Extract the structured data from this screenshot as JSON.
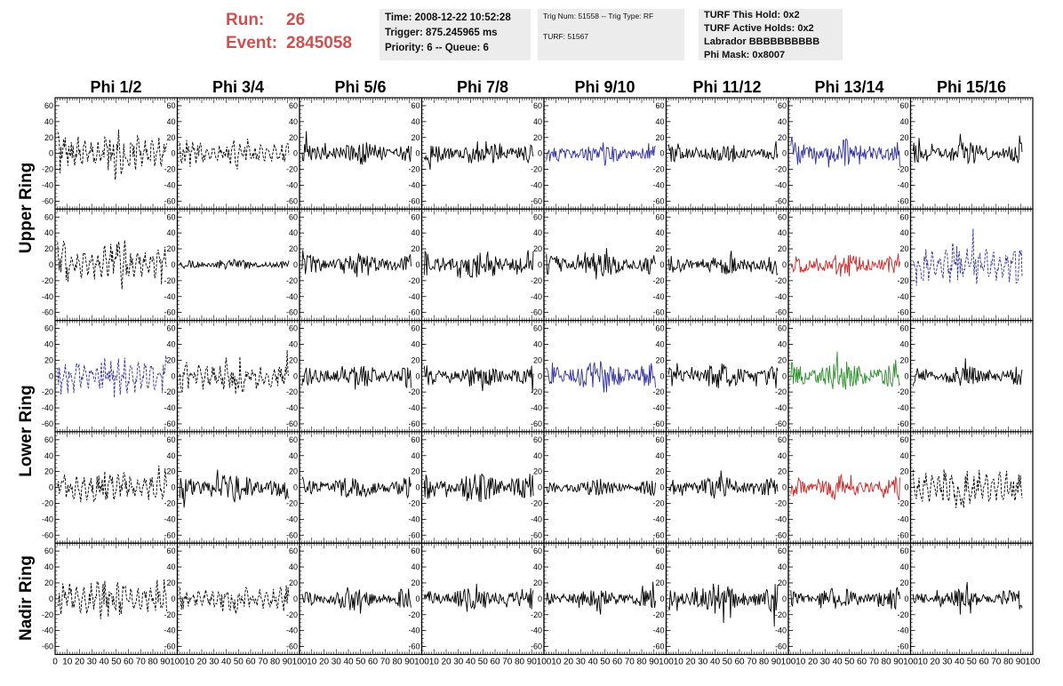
{
  "header": {
    "run_label": "Run:",
    "run_value": "26",
    "event_label": "Event:",
    "event_value": "2845058",
    "time": "Time: 2008-12-22 10:52:28",
    "trigger": "Trigger: 875.245965 ms",
    "priority": "Priority: 6 -- Queue: 6",
    "trig_num": "Trig Num: 51558 -- Trig Type: RF",
    "turf_num": "TURF: 51567",
    "turf_this_hold": "TURF This Hold: 0x2",
    "turf_active_holds": "TURF Active Holds: 0x2",
    "labrador": "Labrador BBBBBBBBBB",
    "phi_mask": "Phi Mask: 0x8007"
  },
  "chart_data": {
    "type": "line",
    "columns": [
      "Phi 1/2",
      "Phi 3/4",
      "Phi 5/6",
      "Phi 7/8",
      "Phi 9/10",
      "Phi 11/12",
      "Phi 13/14",
      "Phi 15/16"
    ],
    "ring_labels": [
      {
        "text": "Upper Ring",
        "rows": [
          0,
          1
        ]
      },
      {
        "text": "Lower Ring",
        "rows": [
          2,
          3
        ]
      },
      {
        "text": "Nadir Ring",
        "rows": [
          4,
          4
        ]
      }
    ],
    "ylim": [
      -70,
      70
    ],
    "y_ticks": [
      -60,
      -40,
      -20,
      0,
      20,
      40,
      60
    ],
    "xlim": [
      0,
      100
    ],
    "x_ticks": [
      0,
      10,
      20,
      30,
      40,
      50,
      60,
      70,
      80,
      90,
      100
    ],
    "colors": {
      "black": "#000000",
      "blue": "#2f2f9f",
      "red": "#c82828",
      "green": "#2a8f2a"
    },
    "panels": [
      [
        {
          "color": "black",
          "style": "dashed",
          "amp": 18
        },
        {
          "color": "black",
          "style": "dashed",
          "amp": 12
        },
        {
          "color": "black",
          "style": "solid",
          "amp": 15
        },
        {
          "color": "black",
          "style": "solid",
          "amp": 15
        },
        {
          "color": "blue",
          "style": "solid",
          "amp": 12
        },
        {
          "color": "black",
          "style": "solid",
          "amp": 11
        },
        {
          "color": "blue",
          "style": "solid",
          "amp": 17
        },
        {
          "color": "black",
          "style": "solid",
          "amp": 14
        }
      ],
      [
        {
          "color": "black",
          "style": "dashed",
          "amp": 20
        },
        {
          "color": "black",
          "style": "solid",
          "amp": 7
        },
        {
          "color": "black",
          "style": "solid",
          "amp": 15
        },
        {
          "color": "black",
          "style": "solid",
          "amp": 17
        },
        {
          "color": "black",
          "style": "solid",
          "amp": 14
        },
        {
          "color": "black",
          "style": "solid",
          "amp": 13
        },
        {
          "color": "red",
          "style": "solid",
          "amp": 14
        },
        {
          "color": "blue",
          "style": "dashed",
          "amp": 20
        }
      ],
      [
        {
          "color": "blue",
          "style": "dashed",
          "amp": 18
        },
        {
          "color": "black",
          "style": "dashed",
          "amp": 16
        },
        {
          "color": "black",
          "style": "solid",
          "amp": 16
        },
        {
          "color": "black",
          "style": "solid",
          "amp": 14
        },
        {
          "color": "blue",
          "style": "solid",
          "amp": 20
        },
        {
          "color": "black",
          "style": "solid",
          "amp": 15
        },
        {
          "color": "green",
          "style": "solid",
          "amp": 18
        },
        {
          "color": "black",
          "style": "solid",
          "amp": 12
        }
      ],
      [
        {
          "color": "black",
          "style": "dashed",
          "amp": 16
        },
        {
          "color": "black",
          "style": "solid",
          "amp": 17
        },
        {
          "color": "black",
          "style": "solid",
          "amp": 13
        },
        {
          "color": "black",
          "style": "solid",
          "amp": 18
        },
        {
          "color": "black",
          "style": "solid",
          "amp": 10
        },
        {
          "color": "black",
          "style": "solid",
          "amp": 13
        },
        {
          "color": "red",
          "style": "solid",
          "amp": 15
        },
        {
          "color": "black",
          "style": "dashed",
          "amp": 20
        }
      ],
      [
        {
          "color": "black",
          "style": "dashed",
          "amp": 18
        },
        {
          "color": "black",
          "style": "dashed",
          "amp": 12
        },
        {
          "color": "black",
          "style": "solid",
          "amp": 14
        },
        {
          "color": "black",
          "style": "solid",
          "amp": 14
        },
        {
          "color": "black",
          "style": "solid",
          "amp": 12
        },
        {
          "color": "black",
          "style": "solid",
          "amp": 18
        },
        {
          "color": "black",
          "style": "solid",
          "amp": 13
        },
        {
          "color": "black",
          "style": "solid",
          "amp": 12
        }
      ]
    ]
  }
}
